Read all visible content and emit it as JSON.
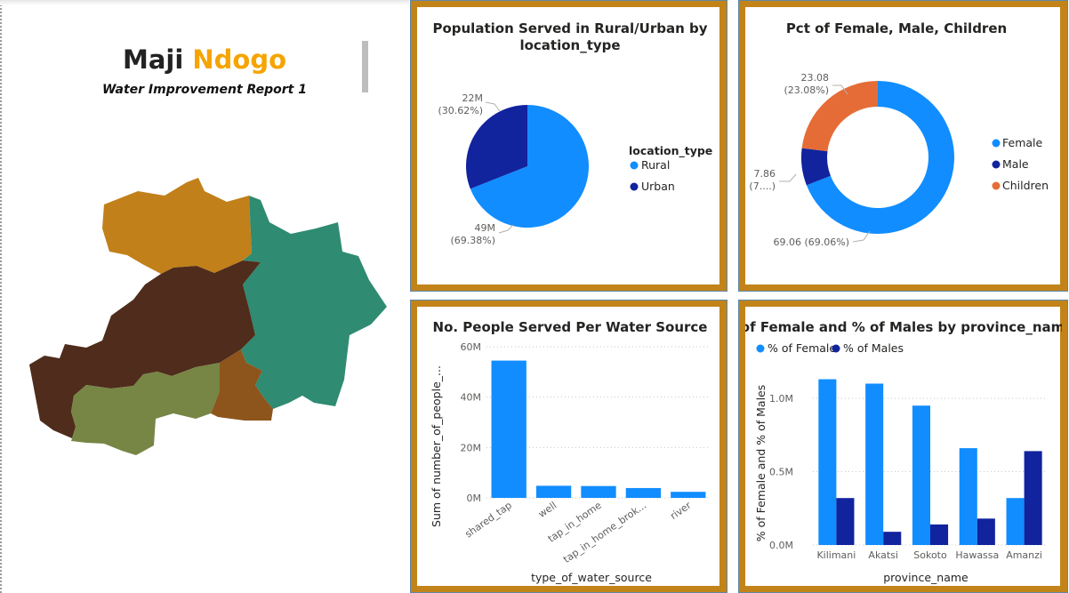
{
  "report": {
    "title_part1": "Maji",
    "title_part2": "Ndogo",
    "subtitle": "Water Improvement Report 1"
  },
  "colors": {
    "panel_border": "#c28419",
    "blue_light": "#118dff",
    "blue_dark": "#12239e",
    "orange": "#e66c37",
    "title_accent": "#f5a400"
  },
  "map": {
    "regions": [
      {
        "name": "north-region",
        "color": "#c1801a"
      },
      {
        "name": "east-region",
        "color": "#2f8b72"
      },
      {
        "name": "central-region",
        "color": "#4f2c1b"
      },
      {
        "name": "southwest-region",
        "color": "#778545"
      },
      {
        "name": "south-region",
        "color": "#8d551c"
      }
    ]
  },
  "chart_data": [
    {
      "type": "pie",
      "title": "Population Served in Rural/Urban by location_type",
      "legend_title": "location_type",
      "legend_position": "right",
      "categories": [
        "Rural",
        "Urban"
      ],
      "values": [
        49,
        22
      ],
      "percents": [
        69.38,
        30.62
      ],
      "data_labels": [
        {
          "value": "49M",
          "pct": "(69.38%)"
        },
        {
          "value": "22M",
          "pct": "(30.62%)"
        }
      ]
    },
    {
      "type": "pie",
      "variant": "donut",
      "title": "Pct of Female, Male, Children",
      "legend_position": "right",
      "categories": [
        "Female",
        "Male",
        "Children"
      ],
      "values": [
        69.06,
        7.86,
        23.08
      ],
      "data_labels": [
        {
          "text": "69.06 (69.06%)"
        },
        {
          "value": "7.86",
          "pct": "(7....)"
        },
        {
          "value": "23.08",
          "pct": "(23.08%)"
        }
      ]
    },
    {
      "type": "bar",
      "title": "No. People Served Per Water Source",
      "xlabel": "type_of_water_source",
      "ylabel": "Sum of number_of_people_...",
      "categories": [
        "shared_tap",
        "well",
        "tap_in_home",
        "tap_in_home_brok...",
        "river"
      ],
      "values": [
        54.5,
        4.8,
        4.7,
        3.9,
        2.4
      ],
      "value_unit": "M",
      "ylim": [
        0,
        60
      ],
      "yticks": [
        "0M",
        "20M",
        "40M",
        "60M"
      ],
      "ytick_values": [
        0,
        20,
        40,
        60
      ],
      "grid": true
    },
    {
      "type": "bar",
      "title": "% of Female and % of Males by province_name",
      "xlabel": "province_name",
      "ylabel": "% of Female and % of Males",
      "legend_position": "top-left",
      "categories": [
        "Kilimani",
        "Akatsi",
        "Sokoto",
        "Hawassa",
        "Amanzi"
      ],
      "series": [
        {
          "name": "% of Female",
          "values": [
            1.13,
            1.1,
            0.95,
            0.66,
            0.32
          ]
        },
        {
          "name": "% of Males",
          "values": [
            0.32,
            0.09,
            0.14,
            0.18,
            0.64
          ]
        }
      ],
      "value_unit": "M",
      "ylim": [
        0,
        1.2
      ],
      "yticks": [
        "0.0M",
        "0.5M",
        "1.0M"
      ],
      "ytick_values": [
        0,
        0.5,
        1.0
      ],
      "grid": true
    }
  ]
}
